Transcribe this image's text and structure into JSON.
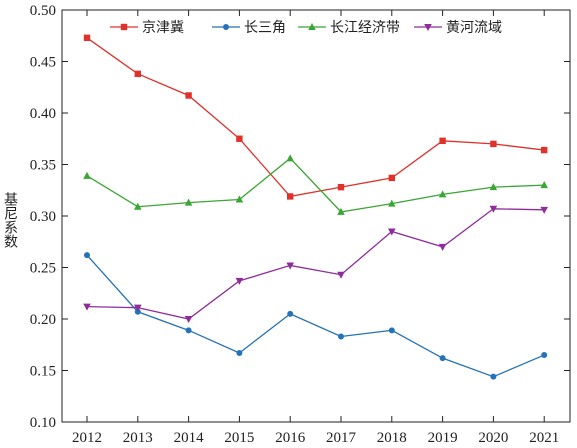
{
  "chart_data": {
    "type": "line",
    "title": "",
    "xlabel": "",
    "ylabel": "基尼系数",
    "x": [
      "2012",
      "2013",
      "2014",
      "2015",
      "2016",
      "2017",
      "2018",
      "2019",
      "2020",
      "2021"
    ],
    "ylim": [
      0.1,
      0.5
    ],
    "yticks": [
      "0.10",
      "0.15",
      "0.20",
      "0.25",
      "0.30",
      "0.35",
      "0.40",
      "0.45",
      "0.50"
    ],
    "grid": false,
    "legend_position": "top-center",
    "series": [
      {
        "name": "京津冀",
        "color": "#e0312b",
        "marker": "square",
        "values": [
          0.473,
          0.438,
          0.417,
          0.375,
          0.319,
          0.328,
          0.337,
          0.373,
          0.37,
          0.364
        ]
      },
      {
        "name": "长三角",
        "color": "#2472b8",
        "marker": "circle",
        "values": [
          0.262,
          0.207,
          0.189,
          0.167,
          0.205,
          0.183,
          0.189,
          0.162,
          0.144,
          0.165
        ]
      },
      {
        "name": "长江经济带",
        "color": "#3aa635",
        "marker": "triangle-up",
        "values": [
          0.339,
          0.309,
          0.313,
          0.316,
          0.356,
          0.304,
          0.312,
          0.321,
          0.328,
          0.33
        ]
      },
      {
        "name": "黄河流域",
        "color": "#8e2c9b",
        "marker": "triangle-down",
        "values": [
          0.212,
          0.211,
          0.2,
          0.237,
          0.252,
          0.243,
          0.285,
          0.27,
          0.307,
          0.306
        ]
      }
    ]
  }
}
